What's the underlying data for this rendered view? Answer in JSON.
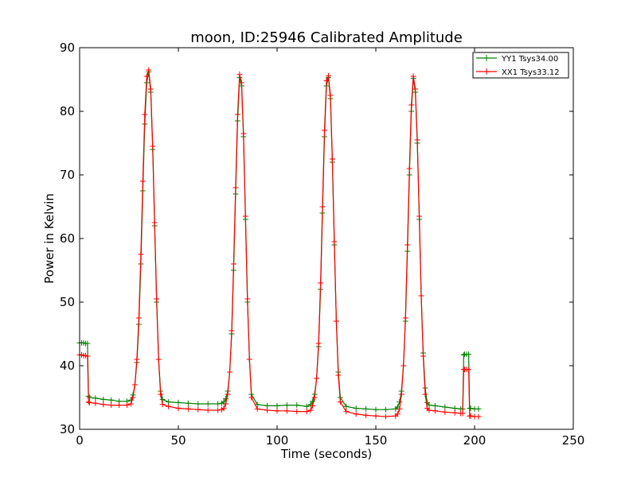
{
  "chart_data": {
    "type": "line",
    "title": "moon, ID:25946 Calibrated Amplitude",
    "xlabel": "Time (seconds)",
    "ylabel": "Power in Kelvin",
    "xlim": [
      0,
      250
    ],
    "ylim": [
      30,
      90
    ],
    "xticks": [
      "0",
      "50",
      "100",
      "150",
      "200",
      "250"
    ],
    "yticks": [
      "30",
      "40",
      "50",
      "60",
      "70",
      "80",
      "90"
    ],
    "grid": false,
    "legend_position": "top-right",
    "marker": "+",
    "series": [
      {
        "name": "YY1 Tsys34.00",
        "color": "#008000",
        "x": [
          0,
          1,
          2,
          3,
          4,
          4.5,
          5,
          8,
          12,
          16,
          20,
          24,
          26,
          27,
          28,
          29,
          30,
          31,
          32,
          33,
          34,
          35,
          36,
          37,
          38,
          39,
          40,
          41,
          42,
          45,
          50,
          55,
          60,
          65,
          70,
          72,
          73,
          74,
          75,
          76,
          77,
          78,
          79,
          80,
          81,
          82,
          83,
          84,
          85,
          86,
          87,
          90,
          95,
          100,
          105,
          110,
          115,
          117,
          118,
          119,
          120,
          121,
          122,
          123,
          124,
          125,
          126,
          127,
          128,
          129,
          130,
          131,
          132,
          135,
          140,
          145,
          150,
          155,
          160,
          161,
          162,
          163,
          164,
          165,
          166,
          167,
          168,
          169,
          170,
          171,
          172,
          173,
          174,
          175,
          176,
          177,
          180,
          185,
          190,
          193,
          194,
          194.5,
          195,
          196,
          197,
          197.5,
          198,
          200,
          202
        ],
        "y": [
          43.6,
          43.6,
          43.6,
          43.5,
          43.5,
          35.2,
          35.0,
          34.9,
          34.7,
          34.6,
          34.4,
          34.4,
          34.6,
          35.4,
          37.0,
          40.5,
          46.5,
          56.0,
          67.5,
          78.0,
          84.5,
          86.2,
          83.0,
          74.0,
          62.0,
          50.0,
          41.0,
          36.0,
          34.7,
          34.3,
          34.2,
          34.1,
          34.0,
          34.0,
          34.0,
          34.1,
          34.3,
          34.8,
          36.0,
          39.0,
          45.0,
          55.0,
          67.0,
          78.5,
          85.3,
          84.0,
          76.0,
          63.0,
          50.0,
          41.0,
          35.5,
          33.9,
          33.7,
          33.7,
          33.8,
          33.8,
          33.6,
          33.9,
          34.4,
          35.5,
          38.0,
          43.0,
          52.0,
          64.0,
          76.0,
          84.0,
          85.3,
          82.0,
          72.0,
          59.0,
          47.0,
          39.0,
          35.0,
          33.6,
          33.3,
          33.2,
          33.1,
          33.1,
          33.2,
          33.5,
          34.3,
          36.0,
          40.0,
          47.0,
          58.0,
          70.0,
          80.0,
          85.2,
          83.0,
          75.0,
          63.0,
          51.0,
          42.0,
          36.5,
          34.2,
          33.8,
          33.7,
          33.5,
          33.3,
          33.2,
          33.2,
          41.7,
          41.8,
          41.8,
          41.8,
          33.3,
          33.3,
          33.2,
          33.2
        ]
      },
      {
        "name": "XX1 Tsys33.12",
        "color": "#ff0000",
        "x": [
          0,
          1,
          2,
          3,
          4,
          4.5,
          5,
          8,
          12,
          16,
          20,
          24,
          26,
          27,
          28,
          29,
          30,
          31,
          32,
          33,
          34,
          35,
          36,
          37,
          38,
          39,
          40,
          41,
          42,
          45,
          50,
          55,
          60,
          65,
          70,
          72,
          73,
          74,
          75,
          76,
          77,
          78,
          79,
          80,
          81,
          82,
          83,
          84,
          85,
          86,
          87,
          90,
          95,
          100,
          105,
          110,
          115,
          117,
          118,
          119,
          120,
          121,
          122,
          123,
          124,
          125,
          126,
          127,
          128,
          129,
          130,
          131,
          132,
          135,
          140,
          145,
          150,
          155,
          160,
          161,
          162,
          163,
          164,
          165,
          166,
          167,
          168,
          169,
          170,
          171,
          172,
          173,
          174,
          175,
          176,
          177,
          180,
          185,
          190,
          193,
          194,
          194.5,
          195,
          196,
          197,
          197.5,
          198,
          200,
          202
        ],
        "y": [
          41.7,
          41.7,
          41.6,
          41.6,
          41.5,
          34.3,
          34.2,
          34.1,
          33.9,
          33.8,
          33.8,
          33.8,
          34.0,
          35.0,
          37.0,
          41.0,
          47.5,
          57.5,
          69.0,
          79.5,
          85.5,
          86.5,
          83.5,
          74.5,
          62.5,
          50.5,
          41.0,
          35.5,
          33.9,
          33.6,
          33.3,
          33.2,
          33.1,
          33.0,
          33.0,
          33.1,
          33.3,
          34.0,
          35.5,
          39.0,
          45.5,
          56.0,
          68.0,
          79.5,
          85.8,
          84.5,
          76.5,
          63.5,
          50.5,
          41.0,
          35.0,
          33.2,
          33.0,
          32.9,
          32.9,
          32.8,
          32.8,
          33.0,
          33.7,
          35.0,
          38.0,
          43.5,
          53.0,
          65.0,
          77.0,
          84.8,
          85.6,
          82.5,
          72.5,
          59.5,
          47.0,
          38.5,
          34.3,
          32.8,
          32.4,
          32.2,
          32.1,
          32.0,
          32.1,
          32.4,
          33.2,
          35.5,
          40.0,
          47.5,
          59.0,
          71.0,
          81.0,
          85.5,
          83.5,
          75.5,
          63.5,
          51.0,
          41.5,
          35.5,
          33.3,
          33.0,
          32.9,
          32.7,
          32.6,
          32.5,
          32.5,
          39.4,
          39.4,
          39.4,
          39.4,
          32.1,
          32.1,
          32.0,
          32.0
        ]
      }
    ]
  }
}
